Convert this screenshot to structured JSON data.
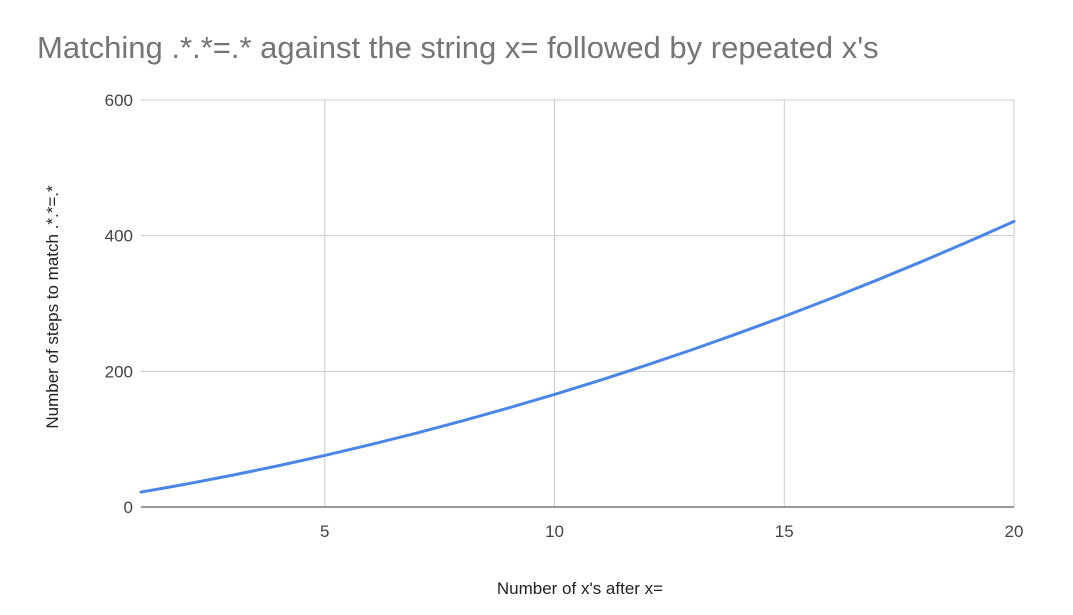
{
  "chart_data": {
    "type": "line",
    "title": "Matching .*.*=.* against the string x= followed by repeated x's",
    "xlabel": "Number of x's after x=",
    "ylabel": "Number of steps to match .*.*=.*",
    "xlim": [
      1,
      20
    ],
    "ylim": [
      0,
      600
    ],
    "x_ticks": [
      5,
      10,
      15,
      20
    ],
    "y_ticks": [
      0,
      200,
      400,
      600
    ],
    "grid": true,
    "legend": "none",
    "series": [
      {
        "color": "#4a86e8",
        "x": [
          1,
          2,
          3,
          4,
          5,
          6,
          7,
          8,
          9,
          10,
          11,
          12,
          13,
          14,
          15,
          16,
          17,
          18,
          19,
          20
        ],
        "y": [
          22,
          34,
          47,
          61,
          76,
          92,
          109,
          127,
          146,
          166,
          187,
          209,
          232,
          256,
          281,
          307,
          334,
          362,
          391,
          421
        ]
      }
    ]
  }
}
